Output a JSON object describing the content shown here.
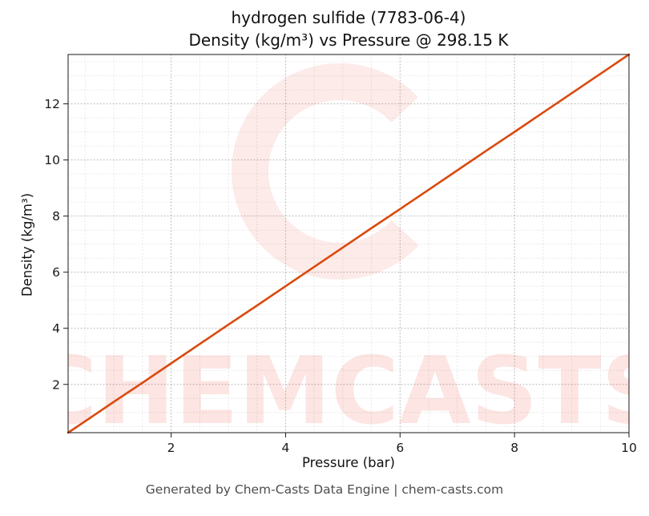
{
  "title_line1": "hydrogen sulfide (7783-06-4)",
  "title_line2": "Density (kg/m³) vs Pressure @ 298.15 K",
  "footer": "Generated by Chem-Casts Data Engine | chem-casts.com",
  "watermark": {
    "text": "CHEMCASTS",
    "color": "#e8492f",
    "text_opacity": 0.14,
    "logo_opacity": 0.11
  },
  "chart_data": {
    "type": "line",
    "title": "hydrogen sulfide (7783-06-4)\nDensity (kg/m³) vs Pressure @ 298.15 K",
    "xlabel": "Pressure (bar)",
    "ylabel": "Density (kg/m³)",
    "xlim": [
      0.2,
      10
    ],
    "ylim": [
      0.28,
      13.76
    ],
    "xticks": [
      2,
      4,
      6,
      8,
      10
    ],
    "yticks": [
      2,
      4,
      6,
      8,
      10,
      12
    ],
    "minor_step_x": 0.5,
    "minor_step_y": 0.5,
    "grid": true,
    "legend": "none",
    "line_color": "#d94a0e",
    "series": [
      {
        "name": "density",
        "x": [
          0.2,
          0.5,
          1,
          1.5,
          2,
          2.5,
          3,
          3.5,
          4,
          4.5,
          5,
          5.5,
          6,
          6.5,
          7,
          7.5,
          8,
          8.5,
          9,
          9.5,
          10
        ],
        "y": [
          0.28,
          0.69,
          1.38,
          2.06,
          2.75,
          3.44,
          4.13,
          4.81,
          5.5,
          6.19,
          6.88,
          7.57,
          8.25,
          8.94,
          9.63,
          10.32,
          11.0,
          11.69,
          12.38,
          13.07,
          13.76
        ]
      }
    ]
  }
}
